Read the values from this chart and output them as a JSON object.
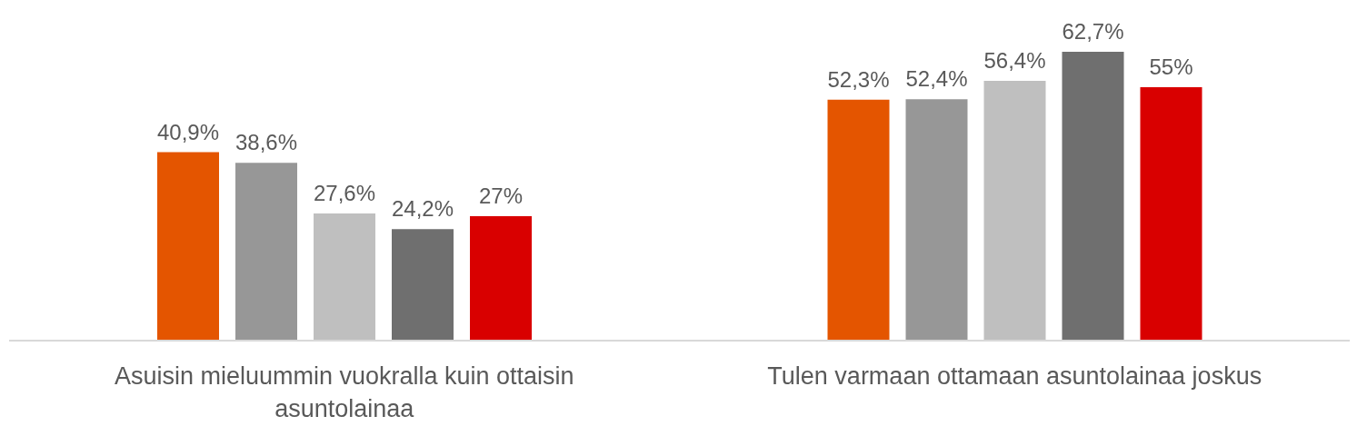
{
  "chart_data": {
    "type": "bar",
    "categories": [
      "Asuisin mieluummin vuokralla kuin ottaisin asuntolainaa",
      "Tulen varmaan ottamaan asuntolainaa joskus"
    ],
    "series": [
      {
        "color": "#e45500",
        "values": [
          40.9,
          52.3
        ],
        "value_labels": [
          "40,9%",
          "52,3%"
        ]
      },
      {
        "color": "#979797",
        "values": [
          38.6,
          52.4
        ],
        "value_labels": [
          "38,6%",
          "52,4%"
        ]
      },
      {
        "color": "#bfbfbf",
        "values": [
          27.6,
          56.4
        ],
        "value_labels": [
          "27,6%",
          "56,4%"
        ]
      },
      {
        "color": "#6f6f6f",
        "values": [
          24.2,
          62.7
        ],
        "value_labels": [
          "24,2%",
          "62,7%"
        ]
      },
      {
        "color": "#d90000",
        "values": [
          27,
          55
        ],
        "value_labels": [
          "27%",
          "55%"
        ]
      }
    ],
    "grid": false,
    "legend": false
  }
}
